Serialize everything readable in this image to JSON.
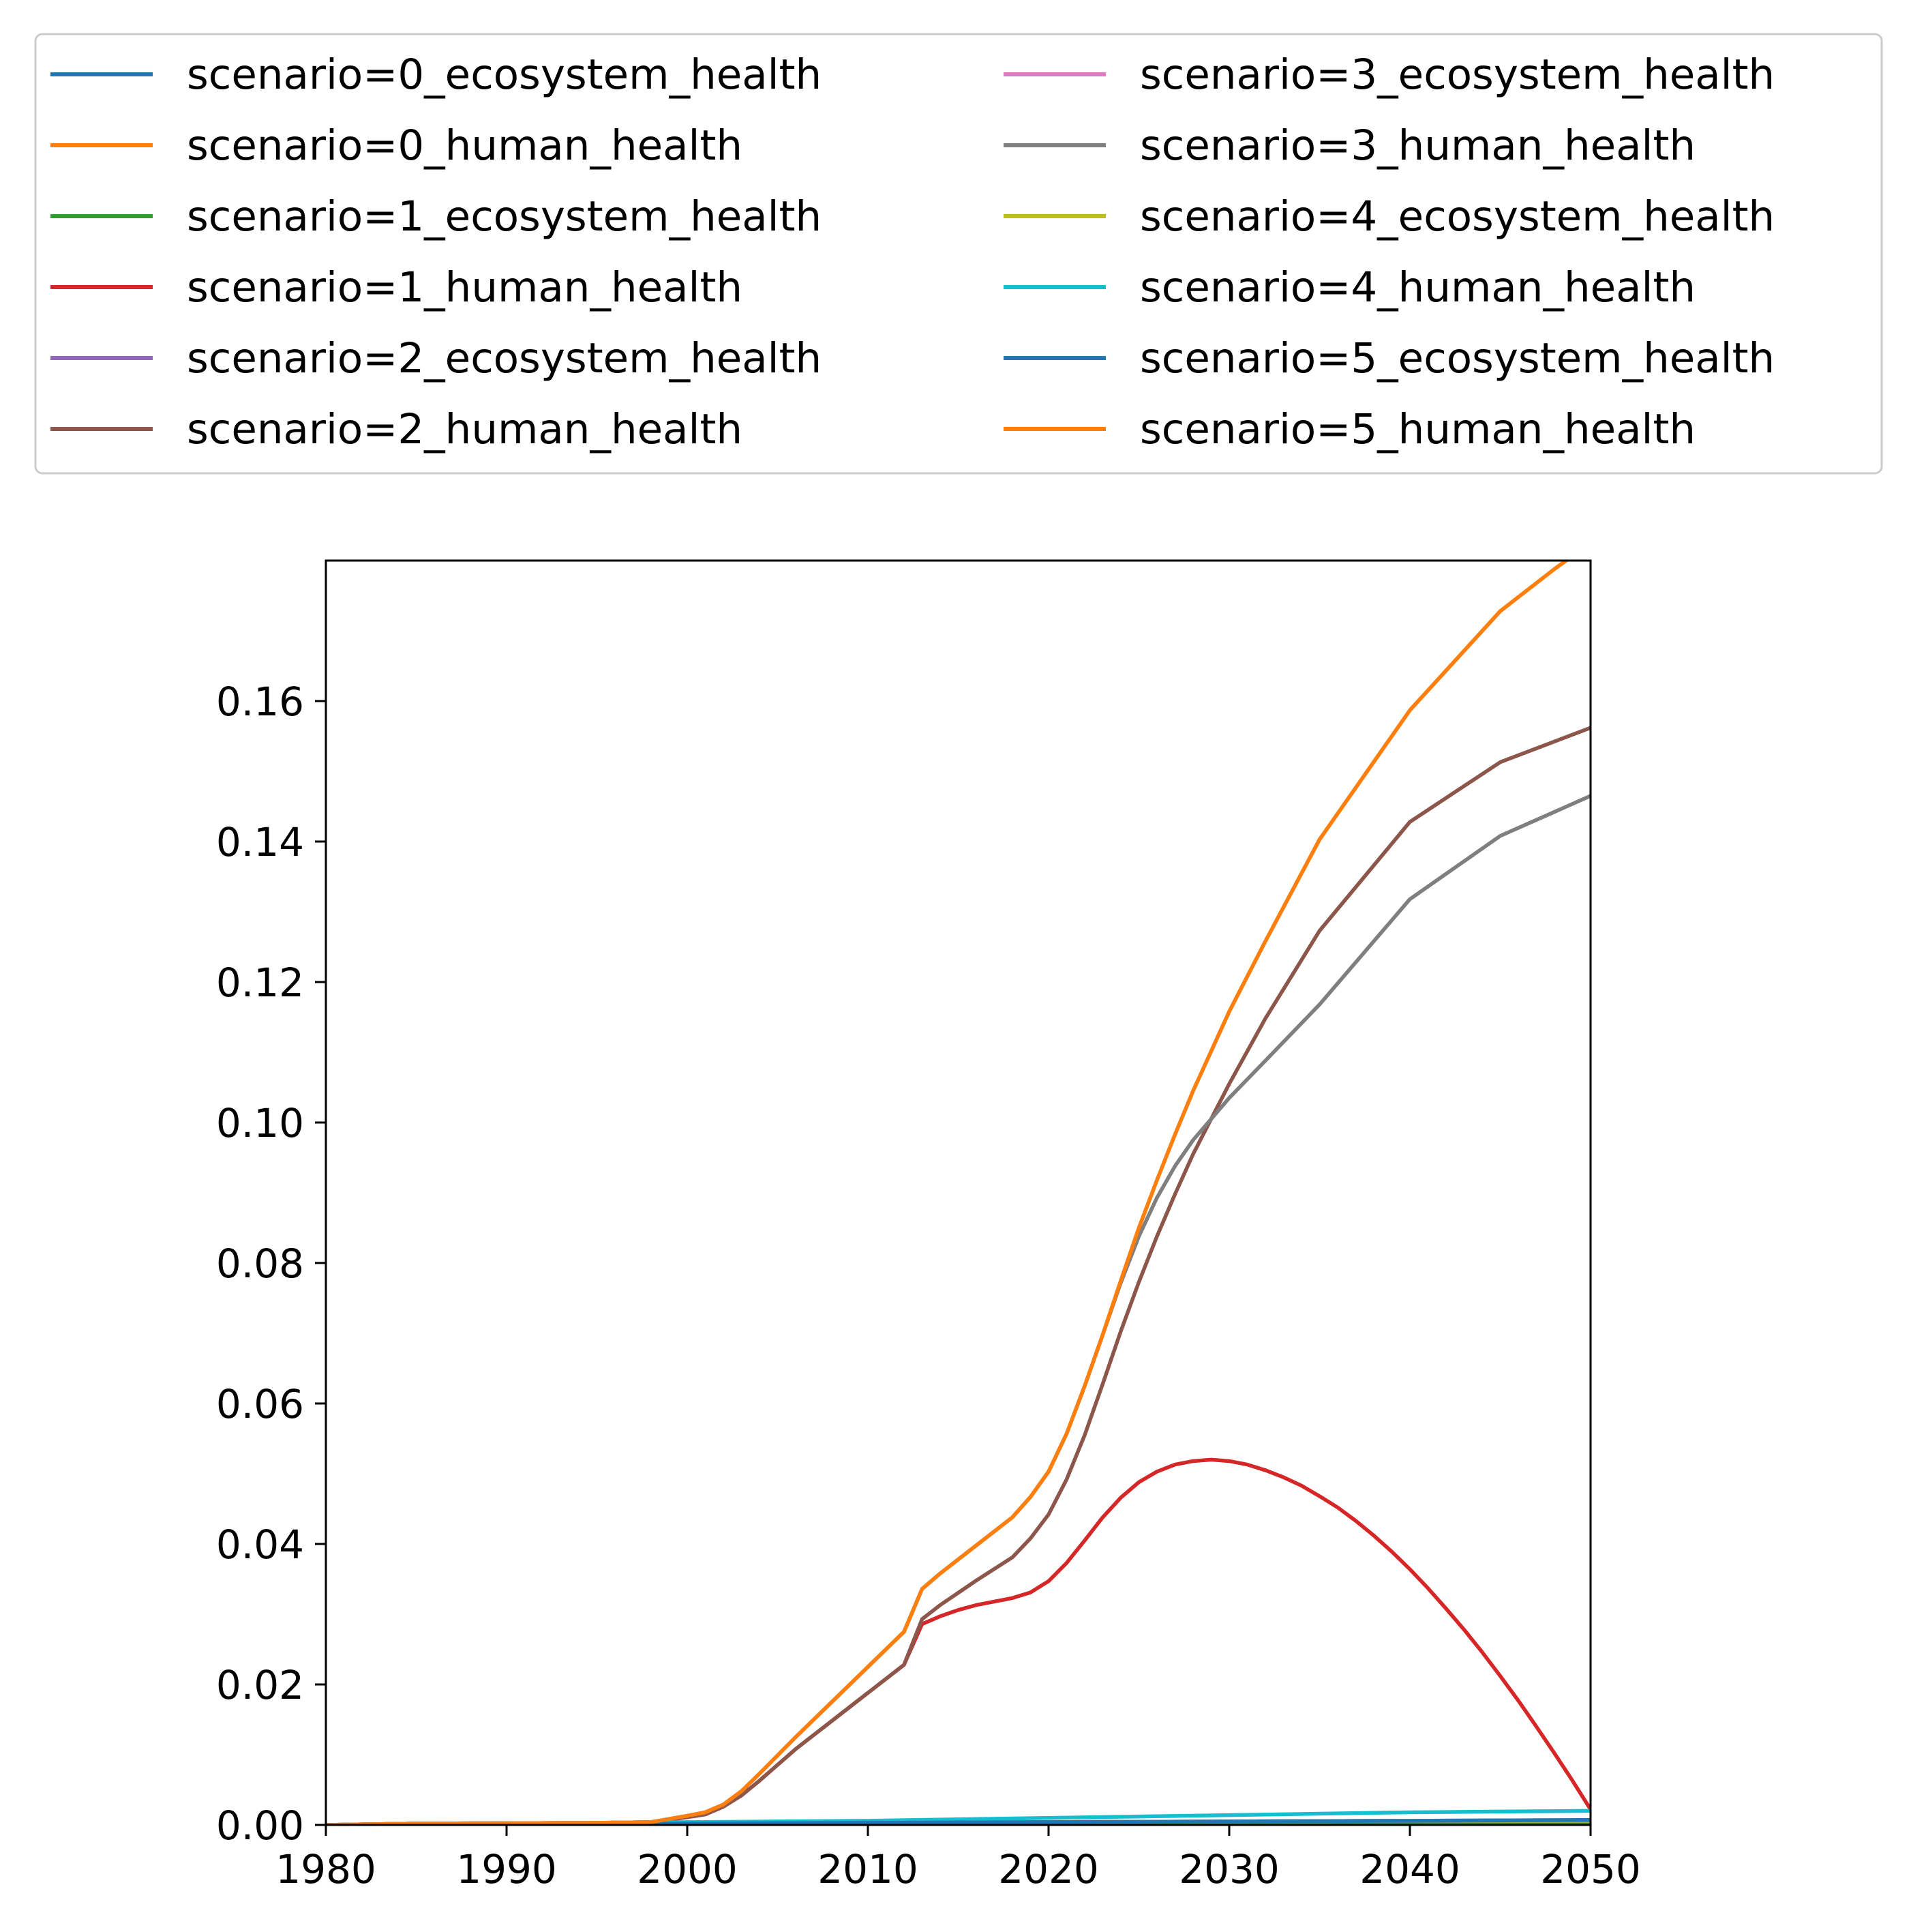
{
  "chart_data": {
    "type": "line",
    "title": "",
    "xlabel": "",
    "ylabel": "",
    "xlim": [
      1980,
      2050
    ],
    "ylim": [
      0,
      0.18
    ],
    "xticks": [
      1980,
      1990,
      2000,
      2010,
      2020,
      2030,
      2040,
      2050
    ],
    "xtick_labels": [
      "1980",
      "1990",
      "2000",
      "2010",
      "2020",
      "2030",
      "2040",
      "2050"
    ],
    "yticks": [
      0.0,
      0.02,
      0.04,
      0.06,
      0.08,
      0.1,
      0.12,
      0.14,
      0.16
    ],
    "ytick_labels": [
      "0.00",
      "0.02",
      "0.04",
      "0.06",
      "0.08",
      "0.10",
      "0.12",
      "0.14",
      "0.16"
    ],
    "grid": false,
    "legend_placement": "above plot, two columns",
    "series": [
      {
        "name": "scenario=0_ecosystem_health",
        "color": "#1f77b4",
        "points": [
          [
            1980,
            0.0
          ],
          [
            1990,
            0.0001
          ],
          [
            2000,
            0.0002
          ],
          [
            2010,
            0.0003
          ],
          [
            2020,
            0.0004
          ],
          [
            2030,
            0.0005
          ],
          [
            2040,
            0.0006
          ],
          [
            2050,
            0.0007
          ]
        ]
      },
      {
        "name": "scenario=0_human_health",
        "color": "#ff7f0e",
        "points": [
          [
            1980,
            0.0
          ],
          [
            1985,
            0.0002
          ],
          [
            1995,
            0.0003
          ],
          [
            1998,
            0.0004
          ],
          [
            2000,
            0.0013
          ],
          [
            2001,
            0.0018
          ],
          [
            2002,
            0.0029
          ],
          [
            2003,
            0.0048
          ],
          [
            2004,
            0.0073
          ],
          [
            2006,
            0.0125
          ],
          [
            2008,
            0.0175
          ],
          [
            2010,
            0.0225
          ],
          [
            2012,
            0.0275
          ],
          [
            2013,
            0.0336
          ],
          [
            2014,
            0.0358
          ],
          [
            2016,
            0.0398
          ],
          [
            2018,
            0.0438
          ],
          [
            2019,
            0.0467
          ],
          [
            2020,
            0.0503
          ],
          [
            2021,
            0.0557
          ],
          [
            2022,
            0.0625
          ],
          [
            2023,
            0.0698
          ],
          [
            2024,
            0.0775
          ],
          [
            2025,
            0.085
          ],
          [
            2026,
            0.0918
          ],
          [
            2027,
            0.0983
          ],
          [
            2028,
            0.1045
          ],
          [
            2030,
            0.1158
          ],
          [
            2032,
            0.1258
          ],
          [
            2035,
            0.1403
          ],
          [
            2040,
            0.1587
          ],
          [
            2045,
            0.1728
          ],
          [
            2048,
            0.1788
          ],
          [
            2050,
            0.1825
          ]
        ]
      },
      {
        "name": "scenario=1_ecosystem_health",
        "color": "#2ca02c",
        "points": [
          [
            1980,
            0.0
          ],
          [
            1990,
            0.0001
          ],
          [
            2000,
            0.0002
          ],
          [
            2010,
            0.0003
          ],
          [
            2020,
            0.0004
          ],
          [
            2030,
            0.0004
          ],
          [
            2040,
            0.0004
          ],
          [
            2050,
            0.0002
          ]
        ]
      },
      {
        "name": "scenario=1_human_health",
        "color": "#d62728",
        "points": [
          [
            1980,
            0.0
          ],
          [
            1985,
            0.0002
          ],
          [
            1995,
            0.0003
          ],
          [
            1998,
            0.0004
          ],
          [
            2000,
            0.0011
          ],
          [
            2001,
            0.0015
          ],
          [
            2002,
            0.0026
          ],
          [
            2003,
            0.0042
          ],
          [
            2004,
            0.0063
          ],
          [
            2006,
            0.0108
          ],
          [
            2008,
            0.0148
          ],
          [
            2010,
            0.0188
          ],
          [
            2012,
            0.0228
          ],
          [
            2013,
            0.0286
          ],
          [
            2014,
            0.0297
          ],
          [
            2015,
            0.0306
          ],
          [
            2016,
            0.0313
          ],
          [
            2017,
            0.0318
          ],
          [
            2018,
            0.0323
          ],
          [
            2019,
            0.0331
          ],
          [
            2020,
            0.0347
          ],
          [
            2021,
            0.0373
          ],
          [
            2022,
            0.0405
          ],
          [
            2023,
            0.0438
          ],
          [
            2024,
            0.0466
          ],
          [
            2025,
            0.0488
          ],
          [
            2026,
            0.0503
          ],
          [
            2027,
            0.0513
          ],
          [
            2028,
            0.0518
          ],
          [
            2029,
            0.052
          ],
          [
            2030,
            0.0518
          ],
          [
            2031,
            0.0513
          ],
          [
            2032,
            0.0505
          ],
          [
            2033,
            0.0495
          ],
          [
            2034,
            0.0483
          ],
          [
            2035,
            0.0468
          ],
          [
            2036,
            0.0452
          ],
          [
            2037,
            0.0433
          ],
          [
            2038,
            0.0412
          ],
          [
            2039,
            0.0389
          ],
          [
            2040,
            0.0364
          ],
          [
            2041,
            0.0337
          ],
          [
            2042,
            0.0308
          ],
          [
            2043,
            0.0278
          ],
          [
            2044,
            0.0246
          ],
          [
            2045,
            0.0212
          ],
          [
            2046,
            0.0177
          ],
          [
            2047,
            0.014
          ],
          [
            2048,
            0.0102
          ],
          [
            2049,
            0.0063
          ],
          [
            2050,
            0.0022
          ]
        ]
      },
      {
        "name": "scenario=2_ecosystem_health",
        "color": "#9467bd",
        "points": [
          [
            1980,
            0.0
          ],
          [
            1990,
            0.0001
          ],
          [
            2000,
            0.0002
          ],
          [
            2010,
            0.0003
          ],
          [
            2020,
            0.0004
          ],
          [
            2030,
            0.0005
          ],
          [
            2040,
            0.0006
          ],
          [
            2050,
            0.0006
          ]
        ]
      },
      {
        "name": "scenario=2_human_health",
        "color": "#8c564b",
        "points": [
          [
            1980,
            0.0
          ],
          [
            1985,
            0.0002
          ],
          [
            1995,
            0.0003
          ],
          [
            1998,
            0.0004
          ],
          [
            2000,
            0.0011
          ],
          [
            2001,
            0.0015
          ],
          [
            2002,
            0.0026
          ],
          [
            2003,
            0.0042
          ],
          [
            2004,
            0.0063
          ],
          [
            2006,
            0.0108
          ],
          [
            2008,
            0.0148
          ],
          [
            2010,
            0.0188
          ],
          [
            2012,
            0.0228
          ],
          [
            2013,
            0.0293
          ],
          [
            2014,
            0.0313
          ],
          [
            2016,
            0.0348
          ],
          [
            2018,
            0.0381
          ],
          [
            2019,
            0.0408
          ],
          [
            2020,
            0.0442
          ],
          [
            2021,
            0.0492
          ],
          [
            2022,
            0.0555
          ],
          [
            2023,
            0.0628
          ],
          [
            2024,
            0.0703
          ],
          [
            2025,
            0.0773
          ],
          [
            2026,
            0.0838
          ],
          [
            2027,
            0.0898
          ],
          [
            2028,
            0.0955
          ],
          [
            2030,
            0.1055
          ],
          [
            2032,
            0.1148
          ],
          [
            2035,
            0.1273
          ],
          [
            2040,
            0.1428
          ],
          [
            2045,
            0.1513
          ],
          [
            2050,
            0.1562
          ]
        ]
      },
      {
        "name": "scenario=3_ecosystem_health",
        "color": "#e377c2",
        "points": [
          [
            1980,
            0.0
          ],
          [
            1990,
            0.0001
          ],
          [
            2000,
            0.0002
          ],
          [
            2010,
            0.0003
          ],
          [
            2020,
            0.0004
          ],
          [
            2030,
            0.0005
          ],
          [
            2040,
            0.0006
          ],
          [
            2050,
            0.0006
          ]
        ]
      },
      {
        "name": "scenario=3_human_health",
        "color": "#7f7f7f",
        "points": [
          [
            1980,
            0.0
          ],
          [
            1985,
            0.0002
          ],
          [
            1995,
            0.0003
          ],
          [
            1998,
            0.0004
          ],
          [
            2000,
            0.0013
          ],
          [
            2001,
            0.0018
          ],
          [
            2002,
            0.0029
          ],
          [
            2003,
            0.0048
          ],
          [
            2004,
            0.0073
          ],
          [
            2006,
            0.0125
          ],
          [
            2008,
            0.0175
          ],
          [
            2010,
            0.0225
          ],
          [
            2012,
            0.0275
          ],
          [
            2013,
            0.0336
          ],
          [
            2014,
            0.0358
          ],
          [
            2016,
            0.0398
          ],
          [
            2018,
            0.0438
          ],
          [
            2019,
            0.0467
          ],
          [
            2020,
            0.0503
          ],
          [
            2021,
            0.0557
          ],
          [
            2022,
            0.0625
          ],
          [
            2023,
            0.0698
          ],
          [
            2024,
            0.0772
          ],
          [
            2025,
            0.0838
          ],
          [
            2026,
            0.0893
          ],
          [
            2027,
            0.0938
          ],
          [
            2028,
            0.0975
          ],
          [
            2030,
            0.1035
          ],
          [
            2032,
            0.1088
          ],
          [
            2035,
            0.1168
          ],
          [
            2040,
            0.1318
          ],
          [
            2045,
            0.1408
          ],
          [
            2050,
            0.1465
          ]
        ]
      },
      {
        "name": "scenario=4_ecosystem_health",
        "color": "#bcbd22",
        "points": [
          [
            1980,
            0.0
          ],
          [
            1990,
            0.0001
          ],
          [
            2000,
            0.0002
          ],
          [
            2010,
            0.0003
          ],
          [
            2020,
            0.0004
          ],
          [
            2030,
            0.0005
          ],
          [
            2040,
            0.0006
          ],
          [
            2050,
            0.0006
          ]
        ]
      },
      {
        "name": "scenario=4_human_health",
        "color": "#17becf",
        "points": [
          [
            1980,
            0.0
          ],
          [
            1985,
            0.0002
          ],
          [
            1995,
            0.0003
          ],
          [
            2000,
            0.0004
          ],
          [
            2005,
            0.0005
          ],
          [
            2010,
            0.0006
          ],
          [
            2015,
            0.0008
          ],
          [
            2020,
            0.001
          ],
          [
            2025,
            0.0012
          ],
          [
            2030,
            0.0014
          ],
          [
            2035,
            0.0016
          ],
          [
            2040,
            0.0018
          ],
          [
            2045,
            0.0019
          ],
          [
            2050,
            0.002
          ]
        ]
      },
      {
        "name": "scenario=5_ecosystem_health",
        "color": "#1f77b4",
        "points": [
          [
            1980,
            0.0
          ],
          [
            1990,
            0.0001
          ],
          [
            2000,
            0.0002
          ],
          [
            2010,
            0.0003
          ],
          [
            2020,
            0.0004
          ],
          [
            2030,
            0.0005
          ],
          [
            2040,
            0.0006
          ],
          [
            2050,
            0.0007
          ]
        ]
      },
      {
        "name": "scenario=5_human_health",
        "color": "#ff7f0e",
        "points": [
          [
            1980,
            0.0
          ],
          [
            1985,
            0.0002
          ],
          [
            1995,
            0.0003
          ],
          [
            1998,
            0.0004
          ],
          [
            2000,
            0.0013
          ],
          [
            2001,
            0.0018
          ],
          [
            2002,
            0.0029
          ],
          [
            2003,
            0.0048
          ],
          [
            2004,
            0.0073
          ],
          [
            2006,
            0.0125
          ],
          [
            2008,
            0.0175
          ],
          [
            2010,
            0.0225
          ],
          [
            2012,
            0.0275
          ],
          [
            2013,
            0.0336
          ],
          [
            2014,
            0.0358
          ],
          [
            2016,
            0.0398
          ],
          [
            2018,
            0.0438
          ],
          [
            2019,
            0.0467
          ],
          [
            2020,
            0.0503
          ],
          [
            2021,
            0.0557
          ],
          [
            2022,
            0.0625
          ],
          [
            2023,
            0.0698
          ],
          [
            2024,
            0.0775
          ],
          [
            2025,
            0.085
          ],
          [
            2026,
            0.0918
          ],
          [
            2027,
            0.0983
          ],
          [
            2028,
            0.1045
          ],
          [
            2030,
            0.1158
          ],
          [
            2032,
            0.1258
          ],
          [
            2035,
            0.1403
          ],
          [
            2040,
            0.1587
          ],
          [
            2045,
            0.1728
          ],
          [
            2048,
            0.1788
          ],
          [
            2050,
            0.1825
          ]
        ]
      }
    ]
  }
}
